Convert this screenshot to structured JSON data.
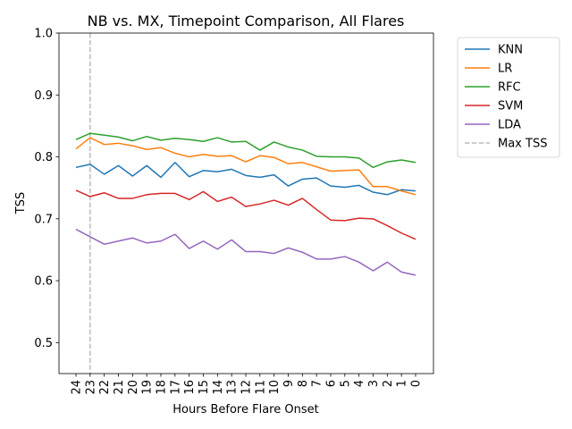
{
  "chart_data": {
    "type": "line",
    "title": "NB vs. MX, Timepoint Comparison, All Flares",
    "xlabel": "Hours Before Flare Onset",
    "ylabel": "TSS",
    "ylim": [
      0.45,
      1.0
    ],
    "yticks": [
      "0.5",
      "0.6",
      "0.7",
      "0.8",
      "0.9",
      "1.0"
    ],
    "categories": [
      "24",
      "23",
      "22",
      "21",
      "20",
      "19",
      "18",
      "17",
      "16",
      "15",
      "14",
      "13",
      "12",
      "11",
      "10",
      "9",
      "8",
      "7",
      "6",
      "5",
      "4",
      "3",
      "2",
      "1",
      "0"
    ],
    "legend_position": "upper right, outside plot",
    "series": [
      {
        "name": "KNN",
        "color": "#1f77b4",
        "values": [
          0.783,
          0.788,
          0.772,
          0.786,
          0.769,
          0.786,
          0.767,
          0.791,
          0.768,
          0.778,
          0.776,
          0.78,
          0.77,
          0.767,
          0.771,
          0.753,
          0.764,
          0.766,
          0.753,
          0.751,
          0.754,
          0.743,
          0.739,
          0.747,
          0.745
        ]
      },
      {
        "name": "LR",
        "color": "#ff7f0e",
        "values": [
          0.813,
          0.831,
          0.82,
          0.822,
          0.818,
          0.812,
          0.815,
          0.806,
          0.8,
          0.804,
          0.801,
          0.802,
          0.792,
          0.802,
          0.799,
          0.789,
          0.791,
          0.784,
          0.777,
          0.778,
          0.779,
          0.752,
          0.752,
          0.745,
          0.739
        ]
      },
      {
        "name": "RFC",
        "color": "#2ca02c",
        "values": [
          0.828,
          0.838,
          0.835,
          0.832,
          0.826,
          0.833,
          0.827,
          0.83,
          0.828,
          0.825,
          0.831,
          0.824,
          0.825,
          0.811,
          0.824,
          0.816,
          0.811,
          0.801,
          0.8,
          0.8,
          0.798,
          0.783,
          0.792,
          0.795,
          0.791
        ]
      },
      {
        "name": "SVM",
        "color": "#d62728",
        "values": [
          0.746,
          0.736,
          0.742,
          0.733,
          0.733,
          0.739,
          0.741,
          0.741,
          0.731,
          0.744,
          0.728,
          0.735,
          0.72,
          0.724,
          0.73,
          0.722,
          0.733,
          0.715,
          0.698,
          0.697,
          0.701,
          0.7,
          0.689,
          0.677,
          0.667
        ]
      },
      {
        "name": "LDA",
        "color": "#9467bd",
        "values": [
          0.683,
          0.671,
          0.659,
          0.664,
          0.669,
          0.661,
          0.664,
          0.675,
          0.652,
          0.664,
          0.651,
          0.666,
          0.647,
          0.647,
          0.644,
          0.653,
          0.646,
          0.635,
          0.635,
          0.639,
          0.63,
          0.616,
          0.63,
          0.614,
          0.609
        ]
      }
    ],
    "reference_line": {
      "name": "Max TSS",
      "x": "23",
      "color": "#bbbbbb",
      "style": "dashed"
    }
  }
}
